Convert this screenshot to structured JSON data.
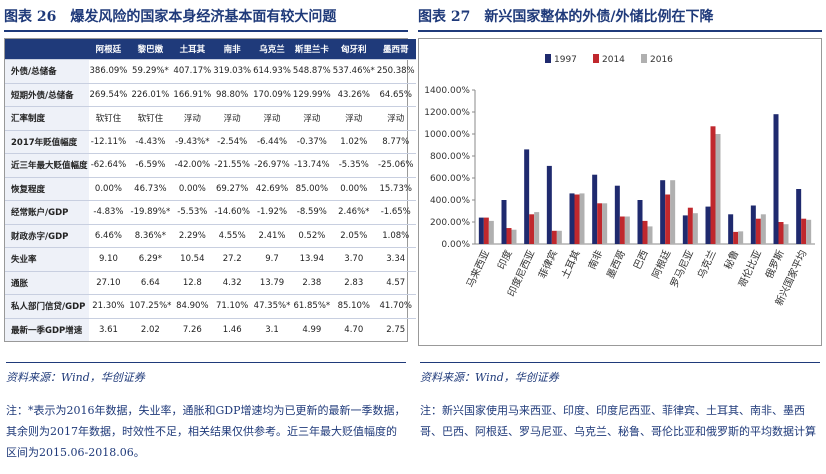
{
  "left": {
    "label": "图表 26",
    "title": "爆发风险的国家本身经济基本面有较大问题",
    "table": {
      "header": [
        "阿根廷",
        "黎巴嫩",
        "土耳其",
        "南非",
        "乌克兰",
        "斯里兰卡",
        "匈牙利",
        "墨西哥"
      ],
      "rows": [
        [
          "外债/总储备",
          "386.09%",
          "59.29%*",
          "407.17%",
          "319.03%",
          "614.93%",
          "548.87%",
          "537.46%*",
          "250.38%"
        ],
        [
          "短期外债/总储备",
          "269.54%",
          "226.01%",
          "166.91%",
          "98.80%",
          "170.09%",
          "129.99%",
          "43.26%",
          "64.65%"
        ],
        [
          "汇率制度",
          "软钉住",
          "软钉住",
          "浮动",
          "浮动",
          "浮动",
          "浮动",
          "浮动",
          "浮动"
        ],
        [
          "2017年贬值幅度",
          "-12.11%",
          "-4.43%",
          "-9.43%*",
          "-2.54%",
          "-6.44%",
          "-0.37%",
          "1.02%",
          "8.77%"
        ],
        [
          "近三年最大贬值幅度",
          "-62.64%",
          "-6.59%",
          "-42.00%",
          "-21.55%",
          "-26.97%",
          "-13.74%",
          "-5.35%",
          "-25.06%"
        ],
        [
          "恢复程度",
          "0.00%",
          "46.73%",
          "0.00%",
          "69.27%",
          "42.69%",
          "85.00%",
          "0.00%",
          "15.73%"
        ],
        [
          "经常账户/GDP",
          "-4.83%",
          "-19.89%*",
          "-5.53%",
          "-14.60%",
          "-1.92%",
          "-8.59%",
          "2.46%*",
          "-1.65%"
        ],
        [
          "财政赤字/GDP",
          "6.46%",
          "8.36%*",
          "2.29%",
          "4.55%",
          "2.41%",
          "0.52%",
          "2.05%",
          "1.08%"
        ],
        [
          "失业率",
          "9.10",
          "6.29*",
          "10.54",
          "27.2",
          "9.7",
          "13.94",
          "3.70",
          "3.34"
        ],
        [
          "通胀",
          "27.10",
          "6.64",
          "12.8",
          "4.32",
          "13.79",
          "2.38",
          "2.83",
          "4.57"
        ],
        [
          "私人部门信贷/GDP",
          "21.30%",
          "107.25%*",
          "84.90%",
          "71.10%",
          "47.35%*",
          "61.85%*",
          "85.10%",
          "41.70%"
        ],
        [
          "最新一季GDP增速",
          "3.61",
          "2.02",
          "7.26",
          "1.46",
          "3.1",
          "4.99",
          "4.70",
          "2.75"
        ]
      ]
    },
    "source": "资料来源：Wind，华创证券",
    "note": "注：*表示为2016年数据，失业率，通胀和GDP增速均为已更新的最新一季数据，其余则为2017年数据，时效性不足，相关结果仅供参考。近三年最大贬值幅度的区间为2015.06-2018.06。"
  },
  "right": {
    "label": "图表 27",
    "title": "新兴国家整体的外债/外储比例在下降",
    "source": "资料来源：Wind，华创证券",
    "note": "注：新兴国家使用马来西亚、印度、印度尼西亚、菲律宾、土耳其、南非、墨西哥、巴西、阿根廷、罗马尼亚、乌克兰、秘鲁、哥伦比亚和俄罗斯的平均数据计算"
  },
  "chart_data": {
    "type": "bar",
    "categories": [
      "马来西亚",
      "印度",
      "印度尼西亚",
      "菲律宾",
      "土耳其",
      "南非",
      "墨西哥",
      "巴西",
      "阿根廷",
      "罗马尼亚",
      "乌克兰",
      "秘鲁",
      "哥伦比亚",
      "俄罗斯",
      "新兴国家平均"
    ],
    "series": [
      {
        "name": "1997",
        "color": "#1f2a6e",
        "values": [
          240,
          400,
          860,
          710,
          460,
          630,
          530,
          400,
          580,
          260,
          340,
          270,
          350,
          1180,
          500
        ]
      },
      {
        "name": "2014",
        "color": "#c0282d",
        "values": [
          240,
          145,
          270,
          120,
          450,
          370,
          250,
          210,
          450,
          330,
          1070,
          110,
          230,
          200,
          230
        ]
      },
      {
        "name": "2016",
        "color": "#b0b0b0",
        "values": [
          210,
          130,
          290,
          120,
          460,
          370,
          250,
          160,
          580,
          280,
          1000,
          115,
          270,
          180,
          220
        ]
      }
    ],
    "ylim": [
      0,
      1400
    ],
    "yticks": [
      {
        "value": 0,
        "label": "0.00%"
      },
      {
        "value": 200,
        "label": "200.00%"
      },
      {
        "value": 400,
        "label": "400.00%"
      },
      {
        "value": 600,
        "label": "600.00%"
      },
      {
        "value": 800,
        "label": "800.00%"
      },
      {
        "value": 1000,
        "label": "1000.00%"
      },
      {
        "value": 1200,
        "label": "1200.00%"
      },
      {
        "value": 1400,
        "label": "1400.00%"
      }
    ],
    "grid": false,
    "legend": "top"
  }
}
